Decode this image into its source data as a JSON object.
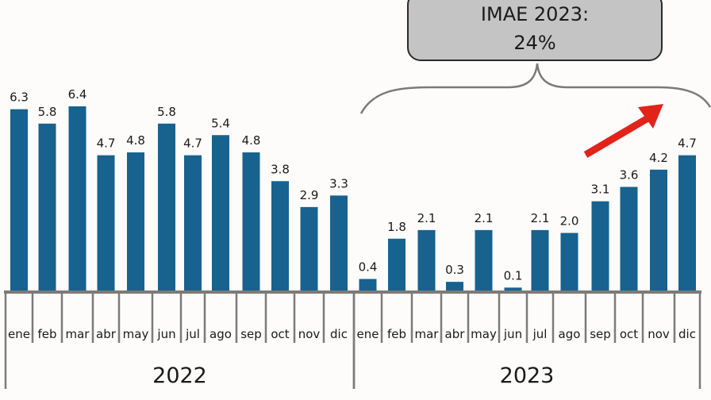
{
  "chart_data": {
    "type": "bar",
    "title": "",
    "xlabel": "",
    "ylabel": "",
    "ylim": [
      0,
      6.4
    ],
    "grid": false,
    "groups": [
      {
        "year": "2022",
        "categories": [
          "ene",
          "feb",
          "mar",
          "abr",
          "may",
          "jun",
          "jul",
          "ago",
          "sep",
          "oct",
          "nov",
          "dic"
        ],
        "values": [
          6.3,
          5.8,
          6.4,
          4.7,
          4.8,
          5.8,
          4.7,
          5.4,
          4.8,
          3.8,
          2.9,
          3.3
        ],
        "labels": [
          "6.3",
          "5.8",
          "6.4",
          "4.7",
          "4.8",
          "5.8",
          "4.7",
          "5.4",
          "4.8",
          "3.8",
          "2.9",
          "3.3"
        ]
      },
      {
        "year": "2023",
        "categories": [
          "ene",
          "feb",
          "mar",
          "abr",
          "may",
          "jun",
          "jul",
          "ago",
          "sep",
          "oct",
          "nov",
          "dic"
        ],
        "values": [
          0.4,
          1.8,
          2.1,
          0.3,
          2.1,
          0.1,
          2.1,
          2.0,
          3.1,
          3.6,
          4.2,
          4.7
        ],
        "labels": [
          "0.4",
          "1.8",
          "2.1",
          "0.3",
          "2.1",
          "0.1",
          "2.1",
          "2.0",
          "3.1",
          "3.6",
          "4.2",
          "4.7"
        ]
      }
    ],
    "annotation": {
      "line1": "IMAE 2023:",
      "line2": "24%"
    },
    "colors": {
      "bar": "#17628f",
      "axis": "#7d7a77",
      "arrow": "#e2231a",
      "callout_fill": "#c4c4c4",
      "brace": "#7a7a7a"
    }
  }
}
